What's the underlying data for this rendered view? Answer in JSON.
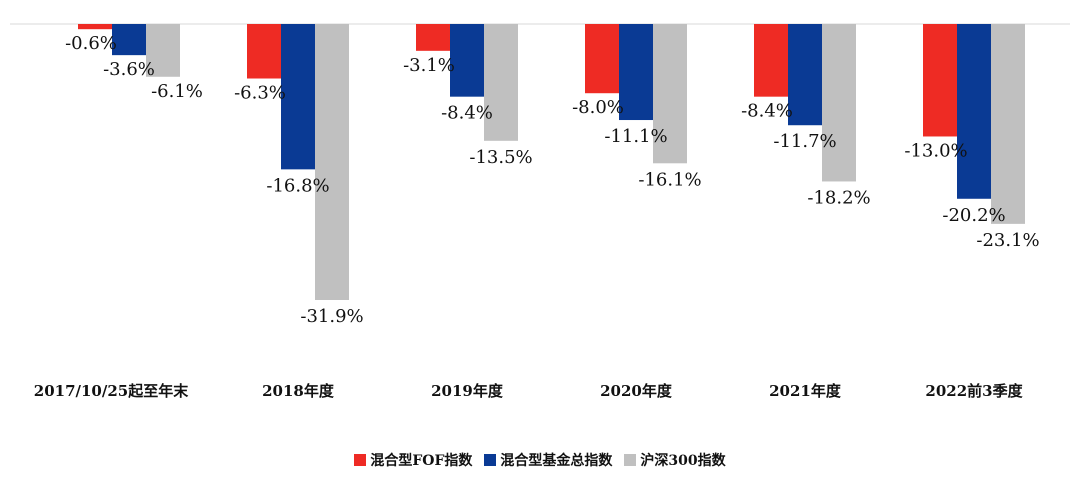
{
  "chart_data": {
    "type": "bar",
    "title": "",
    "xlabel": "",
    "ylabel": "",
    "ylim": [
      -35,
      0
    ],
    "grid": false,
    "legend_position": "bottom",
    "categories": [
      "2017/10/25起至年末",
      "2018年度",
      "2019年度",
      "2020年度",
      "2021年度",
      "2022前3季度"
    ],
    "series": [
      {
        "name": "混合型FOF指数",
        "color": "#ee2b24",
        "values": [
          -0.6,
          -6.3,
          -3.1,
          -8.0,
          -8.4,
          -13.0
        ],
        "labels": [
          "-0.6%",
          "-6.3%",
          "-3.1%",
          "-8.0%",
          "-8.4%",
          "-13.0%"
        ]
      },
      {
        "name": "混合型基金总指数",
        "color": "#0a3a94",
        "values": [
          -3.6,
          -16.8,
          -8.4,
          -11.1,
          -11.7,
          -20.2
        ],
        "labels": [
          "-3.6%",
          "-16.8%",
          "-8.4%",
          "-11.1%",
          "-11.7%",
          "-20.2%"
        ]
      },
      {
        "name": "沪深300指数",
        "color": "#c0c0c0",
        "values": [
          -6.1,
          -31.9,
          -13.5,
          -16.1,
          -18.2,
          -23.1
        ],
        "labels": [
          "-6.1%",
          "-31.9%",
          "-13.5%",
          "-16.1%",
          "-18.2%",
          "-23.1%"
        ]
      }
    ]
  }
}
